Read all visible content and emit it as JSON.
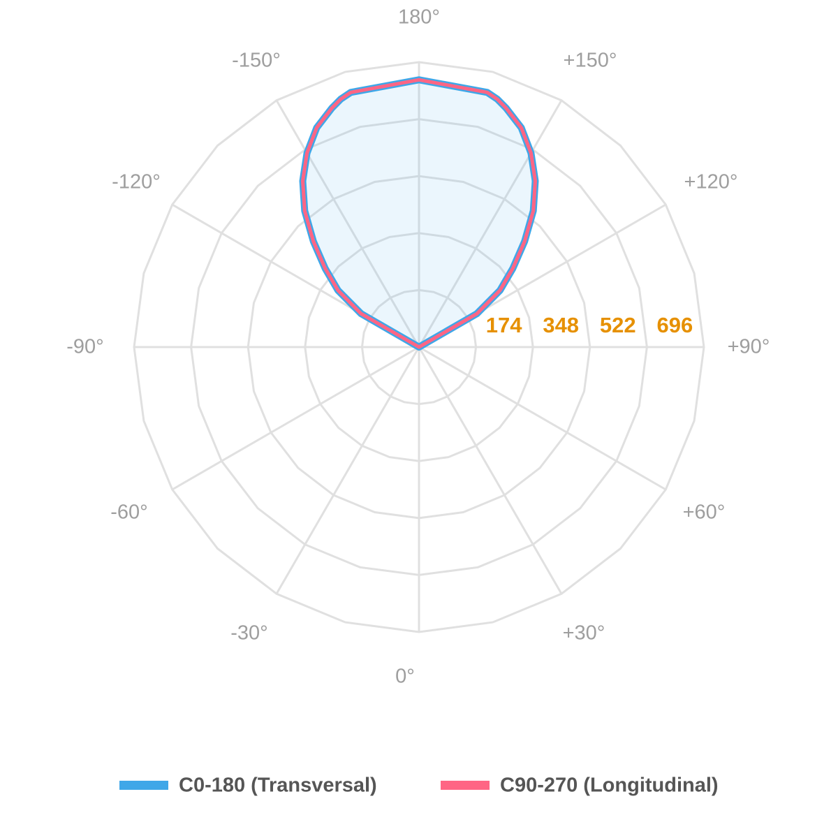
{
  "chart_data": {
    "type": "polar",
    "angle_labels": [
      "180°",
      "+150°",
      "+120°",
      "+90°",
      "+60°",
      "+30°",
      "0°",
      "-30°",
      "-60°",
      "-90°",
      "-120°",
      "-150°"
    ],
    "radial_ticks": [
      "174",
      "348",
      "522",
      "696"
    ],
    "rmax": 870,
    "grid": true,
    "legend_position": "bottom",
    "series": [
      {
        "name": "C0-180 (Transversal)",
        "color": "#3fa7e8",
        "angles": [
          0,
          15,
          17.5,
          20,
          25,
          30,
          35,
          40,
          45,
          50,
          55,
          60,
          90,
          120,
          150,
          180
        ],
        "values": [
          816,
          805,
          794,
          777,
          739,
          684,
          619,
          543,
          456,
          374,
          302,
          204,
          0,
          0,
          0,
          0
        ]
      },
      {
        "name": "C90-270 (Longitudinal)",
        "color": "#ff6584",
        "angles": [
          0,
          15,
          17.5,
          20,
          25,
          30,
          35,
          40,
          45,
          50,
          55,
          60,
          90,
          120,
          150,
          180
        ],
        "values": [
          816,
          805,
          794,
          777,
          739,
          684,
          619,
          543,
          456,
          374,
          302,
          204,
          0,
          0,
          0,
          0
        ]
      }
    ]
  }
}
